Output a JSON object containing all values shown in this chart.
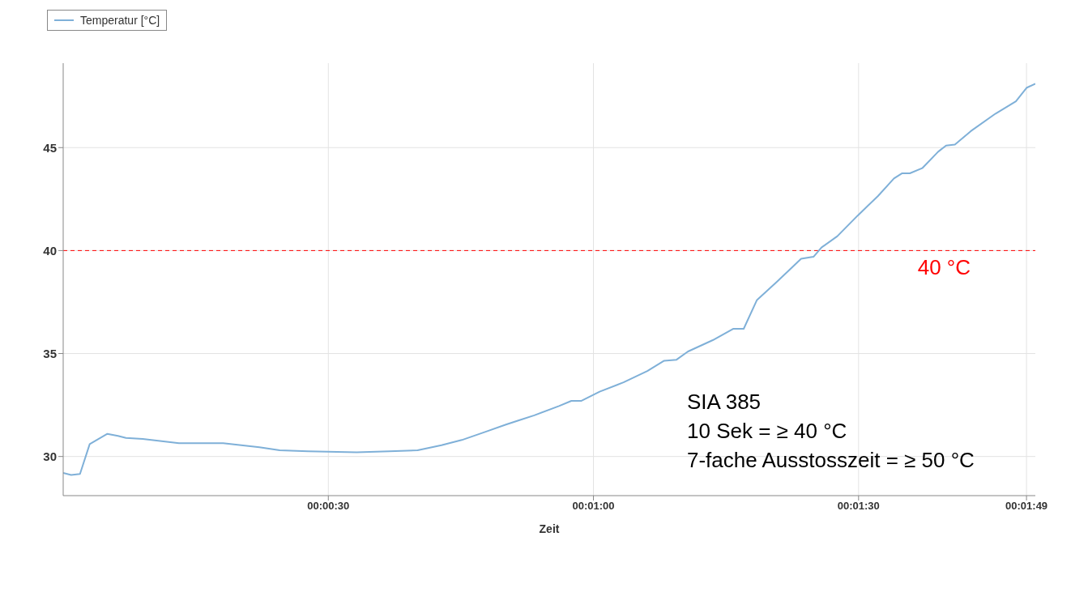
{
  "chart_data": {
    "type": "line",
    "xlabel": "Zeit",
    "x": [
      0,
      0.9,
      1.9,
      3,
      5,
      6.2,
      7.1,
      9,
      13.1,
      18.1,
      22.2,
      24.5,
      27.7,
      33.2,
      36.9,
      40.1,
      42.8,
      45.1,
      47.8,
      50.1,
      51.5,
      53.3,
      56.1,
      57.5,
      58.6,
      60.7,
      63.4,
      66.1,
      68,
      69.4,
      70.7,
      73.5,
      75.8,
      77,
      78.5,
      80.8,
      83.5,
      84.9,
      85.8,
      87.6,
      89.9,
      92.2,
      94,
      94.9,
      95.8,
      97.2,
      99,
      99.9,
      100.9,
      102.7,
      105.5,
      107.8,
      109,
      110
    ],
    "series": [
      {
        "name": "Temperatur [°C]",
        "color": "#7fb0d8",
        "values": [
          29.2,
          29.1,
          29.15,
          30.6,
          31.1,
          31.0,
          30.9,
          30.85,
          30.65,
          30.65,
          30.45,
          30.3,
          30.25,
          30.2,
          30.25,
          30.3,
          30.55,
          30.8,
          31.2,
          31.55,
          31.75,
          32.0,
          32.45,
          32.7,
          32.7,
          33.15,
          33.6,
          34.15,
          34.65,
          34.7,
          35.1,
          35.65,
          36.2,
          36.2,
          37.6,
          38.5,
          39.6,
          39.7,
          40.15,
          40.7,
          41.7,
          42.65,
          43.5,
          43.75,
          43.75,
          44.0,
          44.8,
          45.1,
          45.15,
          45.8,
          46.65,
          47.25,
          47.9,
          48.1
        ]
      }
    ],
    "xlim": [
      0,
      110
    ],
    "xticks": [
      {
        "value": 30,
        "label": "00:00:30"
      },
      {
        "value": 60,
        "label": "00:01:00"
      },
      {
        "value": 90,
        "label": "00:01:30"
      },
      {
        "value": 109,
        "label": "00:01:49"
      }
    ],
    "ylim": [
      28.1,
      49.1
    ],
    "yticks": [
      30,
      35,
      40,
      45
    ],
    "ref_lines": [
      {
        "axis": "y",
        "value": 40,
        "label": "40 °C",
        "color": "#ff0000",
        "line_style": "dashed"
      }
    ],
    "annotations": [
      "SIA 385",
      "10 Sek = ≥ 40 °C",
      "7-fache Ausstosszeit = ≥ 50 °C"
    ],
    "grid": true,
    "legend": "top left",
    "marker": "none",
    "line_style": "solid"
  }
}
